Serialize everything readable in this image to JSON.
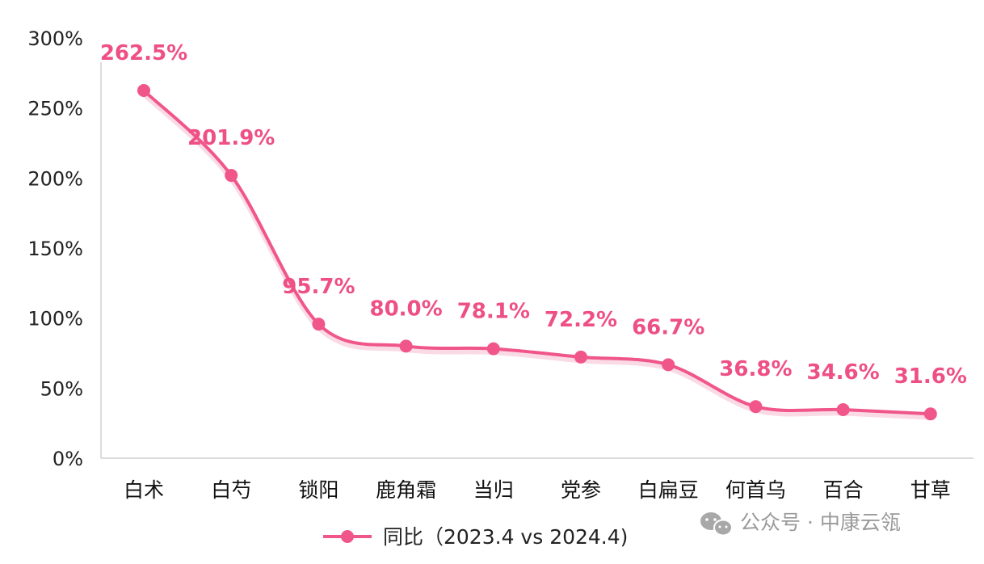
{
  "chart_data": {
    "type": "line",
    "categories": [
      "白术",
      "白芍",
      "锁阳",
      "鹿角霜",
      "当归",
      "党参",
      "白扁豆",
      "何首乌",
      "百合",
      "甘草"
    ],
    "series": [
      {
        "name": "同比（2023.4 vs 2024.4)",
        "values": [
          262.5,
          201.9,
          95.7,
          80.0,
          78.1,
          72.2,
          66.7,
          36.8,
          34.6,
          31.6
        ],
        "data_labels": [
          "262.5%",
          "201.9%",
          "95.7%",
          "80.0%",
          "78.1%",
          "72.2%",
          "66.7%",
          "36.8%",
          "34.6%",
          "31.6%"
        ]
      }
    ],
    "ylim": [
      0,
      300
    ],
    "yticks": [
      0,
      50,
      100,
      150,
      200,
      250,
      300
    ],
    "ytick_labels": [
      "0%",
      "50%",
      "100%",
      "150%",
      "200%",
      "250%",
      "300%"
    ],
    "title": "",
    "xlabel": "",
    "ylabel": "",
    "grid": false,
    "smooth": true,
    "legend_position": "bottom",
    "colors": {
      "line": "#f0568a",
      "label": "#ee4f84"
    }
  },
  "watermark": {
    "icon": "wechat-icon",
    "text": "公众号 · 中康云瓴"
  }
}
